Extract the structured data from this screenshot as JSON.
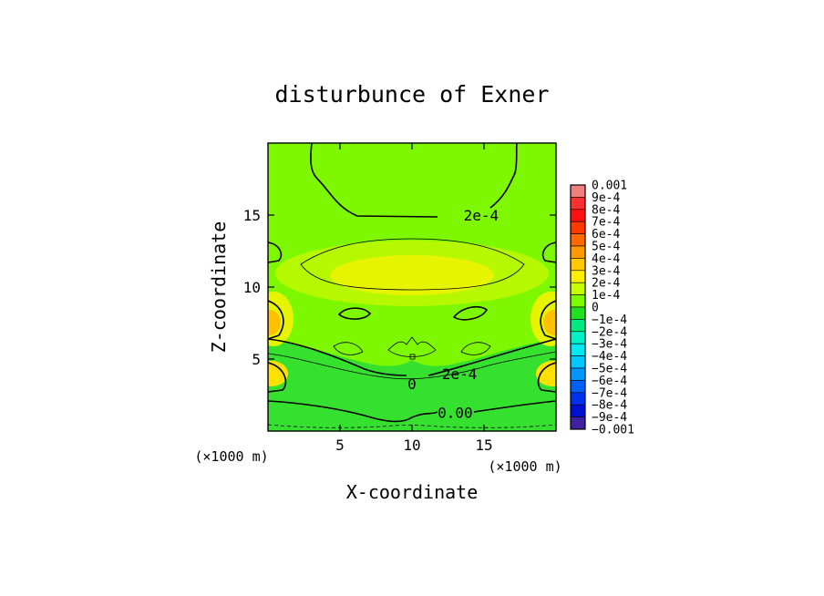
{
  "chart_data": {
    "type": "heatmap",
    "title": "disturbunce of Exner",
    "xlabel": "X-coordinate",
    "ylabel": "Z-coordinate",
    "x_unit": "(×1000 m)",
    "z_unit": "(×1000 m)",
    "xlim": [
      0,
      20
    ],
    "ylim": [
      0,
      20
    ],
    "x_ticks": [
      "5",
      "10",
      "15"
    ],
    "x_tick_values": [
      5,
      10,
      15
    ],
    "y_ticks": [
      "5",
      "10",
      "15"
    ],
    "y_tick_values": [
      5,
      10,
      15
    ],
    "contour_labels": [
      {
        "text": "2e-4",
        "x": 14.8,
        "z": 15.0
      },
      {
        "text": "2e-4",
        "x": 13.3,
        "z": 4.0
      },
      {
        "text": "0",
        "x": 10.0,
        "z": 3.3
      },
      {
        "text": "0.00",
        "x": 13.0,
        "z": 1.3
      }
    ],
    "colorbar": {
      "range": [
        -0.001,
        0.001
      ],
      "labels": [
        "0.001",
        "9e-4",
        "8e-4",
        "7e-4",
        "6e-4",
        "5e-4",
        "4e-4",
        "3e-4",
        "2e-4",
        "1e-4",
        "0",
        "−1e-4",
        "−2e-4",
        "−3e-4",
        "−4e-4",
        "−5e-4",
        "−6e-4",
        "−7e-4",
        "−8e-4",
        "−9e-4",
        "−0.001"
      ],
      "colors": [
        "#f08080",
        "#ff3030",
        "#ff1010",
        "#ff3a00",
        "#ff6a00",
        "#ff9a00",
        "#ffc800",
        "#ffee00",
        "#c8ff00",
        "#7cfc00",
        "#20e020",
        "#00e880",
        "#00f0c8",
        "#00e8f0",
        "#00c8ff",
        "#0098ff",
        "#0060ff",
        "#0030f0",
        "#0010d0",
        "#4020a0"
      ]
    },
    "field_colors": {
      "c0": "#36e02e",
      "c1": "#7ef800",
      "c2": "#b6f800",
      "c3": "#e6f400",
      "c4": "#ffe000",
      "c5": "#ffc000"
    }
  }
}
